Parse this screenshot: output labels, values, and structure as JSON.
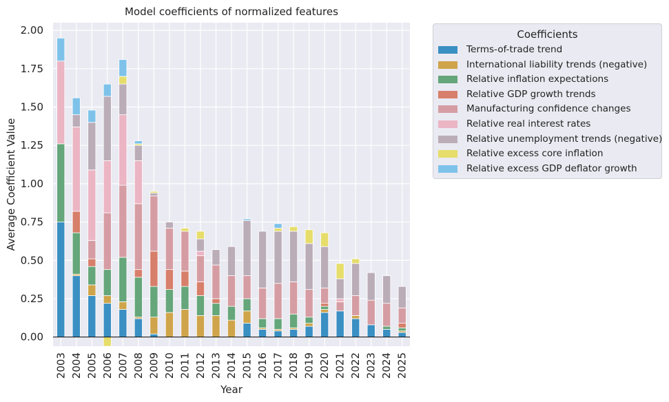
{
  "chart_data": {
    "type": "bar",
    "stacked": true,
    "title": "Model coefficients of normalized features",
    "xlabel": "Year",
    "ylabel": "Average Coefficient Value",
    "ylim": [
      -0.06,
      2.05
    ],
    "yticks": [
      0.0,
      0.25,
      0.5,
      0.75,
      1.0,
      1.25,
      1.5,
      1.75,
      2.0
    ],
    "ytick_labels": [
      "0.00",
      "0.25",
      "0.50",
      "0.75",
      "1.00",
      "1.25",
      "1.50",
      "1.75",
      "2.00"
    ],
    "grid": true,
    "legend_title": "Coefficients",
    "legend_position": "outside-right-top",
    "categories": [
      "2003",
      "2004",
      "2005",
      "2006",
      "2007",
      "2008",
      "2009",
      "2010",
      "2011",
      "2012",
      "2013",
      "2014",
      "2015",
      "2016",
      "2017",
      "2018",
      "2019",
      "2020",
      "2021",
      "2022",
      "2023",
      "2024",
      "2025"
    ],
    "series": [
      {
        "name": "Terms-of-trade trend",
        "color": "#3a8fc3",
        "values": [
          0.75,
          0.4,
          0.27,
          0.22,
          0.18,
          0.12,
          0.02,
          0.0,
          0.0,
          0.0,
          0.0,
          0.0,
          0.09,
          0.05,
          0.04,
          0.05,
          0.07,
          0.16,
          0.17,
          0.12,
          0.08,
          0.05,
          0.03
        ]
      },
      {
        "name": "International liability trends (negative)",
        "color": "#cfa44a",
        "values": [
          0.0,
          0.01,
          0.07,
          0.05,
          0.05,
          0.01,
          0.11,
          0.16,
          0.18,
          0.14,
          0.14,
          0.11,
          0.08,
          0.01,
          0.01,
          0.01,
          0.02,
          0.02,
          0.0,
          0.02,
          0.0,
          0.0,
          0.01
        ]
      },
      {
        "name": "Relative inflation expectations",
        "color": "#65a67a",
        "values": [
          0.51,
          0.27,
          0.12,
          0.17,
          0.29,
          0.26,
          0.2,
          0.15,
          0.15,
          0.13,
          0.08,
          0.09,
          0.08,
          0.06,
          0.07,
          0.09,
          0.04,
          0.02,
          0.0,
          0.0,
          0.0,
          0.02,
          0.02
        ]
      },
      {
        "name": "Relative GDP growth trends",
        "color": "#d77f6a",
        "values": [
          0.0,
          0.14,
          0.05,
          0.0,
          0.0,
          0.05,
          0.23,
          0.13,
          0.1,
          0.09,
          0.03,
          0.0,
          0.0,
          0.0,
          0.0,
          0.0,
          0.0,
          0.02,
          0.0,
          0.0,
          0.0,
          0.0,
          0.03
        ]
      },
      {
        "name": "Manufacturing confidence changes",
        "color": "#d59da3",
        "values": [
          0.0,
          0.0,
          0.12,
          0.37,
          0.47,
          0.43,
          0.36,
          0.27,
          0.26,
          0.17,
          0.22,
          0.2,
          0.15,
          0.2,
          0.23,
          0.21,
          0.18,
          0.1,
          0.06,
          0.13,
          0.16,
          0.15,
          0.1
        ]
      },
      {
        "name": "Relative real interest rates",
        "color": "#ebb5c4",
        "values": [
          0.54,
          0.55,
          0.46,
          0.34,
          0.46,
          0.28,
          0.0,
          0.0,
          0.0,
          0.03,
          0.0,
          0.0,
          0.0,
          0.0,
          0.0,
          0.0,
          0.0,
          0.0,
          0.02,
          0.0,
          0.0,
          0.0,
          0.0
        ]
      },
      {
        "name": "Relative unemployment trends (negative)",
        "color": "#bbadb8",
        "values": [
          0.0,
          0.08,
          0.31,
          0.42,
          0.2,
          0.1,
          0.02,
          0.04,
          0.0,
          0.08,
          0.1,
          0.19,
          0.36,
          0.37,
          0.34,
          0.33,
          0.3,
          0.27,
          0.13,
          0.21,
          0.18,
          0.18,
          0.14
        ]
      },
      {
        "name": "Relative excess core inflation",
        "color": "#e6dd6b",
        "values": [
          0.0,
          0.0,
          0.0,
          -0.06,
          0.05,
          0.01,
          0.01,
          0.0,
          0.02,
          0.05,
          0.0,
          0.0,
          0.0,
          0.0,
          0.02,
          0.03,
          0.09,
          0.09,
          0.1,
          0.03,
          0.0,
          0.0,
          0.0
        ]
      },
      {
        "name": "Relative excess GDP deflator growth",
        "color": "#7ec2ea",
        "values": [
          0.15,
          0.11,
          0.08,
          0.08,
          0.11,
          0.02,
          0.0,
          0.0,
          0.0,
          0.0,
          0.0,
          0.0,
          0.01,
          0.0,
          0.03,
          0.0,
          0.0,
          0.0,
          0.0,
          0.0,
          0.0,
          0.0,
          0.0
        ]
      }
    ]
  }
}
